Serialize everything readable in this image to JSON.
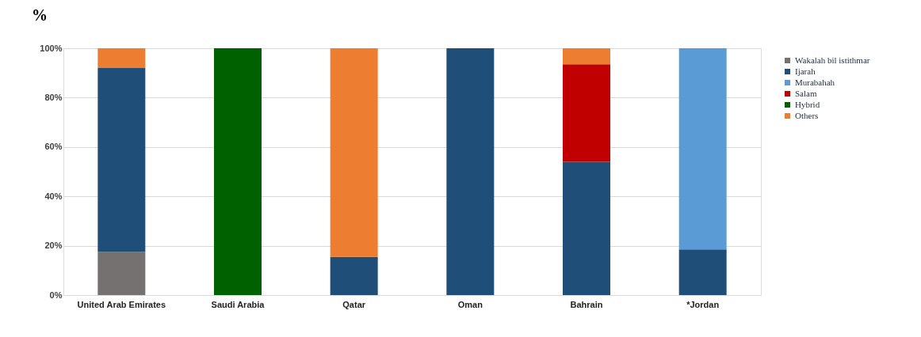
{
  "chart_data": {
    "type": "bar",
    "title": "%",
    "stacked": true,
    "categories": [
      "United Arab Emirates",
      "Saudi Arabia",
      "Qatar",
      "Oman",
      "Bahrain",
      "*Jordan"
    ],
    "series": [
      {
        "name": "Wakalah bil istithmar",
        "color": "#757171",
        "values": [
          17.5,
          null,
          null,
          null,
          null,
          null
        ]
      },
      {
        "name": "Ijarah",
        "color": "#1f4e79",
        "values": [
          74.5,
          null,
          15.5,
          100,
          54,
          18.5
        ]
      },
      {
        "name": "Murabahah",
        "color": "#5b9bd5",
        "values": [
          null,
          null,
          null,
          null,
          null,
          81.5
        ]
      },
      {
        "name": "Salam",
        "color": "#c00000",
        "values": [
          null,
          null,
          null,
          null,
          39.5,
          null
        ]
      },
      {
        "name": "Hybrid",
        "color": "#006100",
        "values": [
          null,
          100,
          null,
          null,
          null,
          null
        ]
      },
      {
        "name": "Others",
        "color": "#ed7d31",
        "values": [
          8,
          null,
          84.5,
          null,
          6.5,
          null
        ]
      }
    ],
    "ylim": [
      0,
      100
    ],
    "yticks": [
      {
        "value": 0,
        "label": "0%"
      },
      {
        "value": 20,
        "label": "20%"
      },
      {
        "value": 40,
        "label": "40%"
      },
      {
        "value": 60,
        "label": "60%"
      },
      {
        "value": 80,
        "label": "80%"
      },
      {
        "value": 100,
        "label": "100%"
      }
    ],
    "grid": "y",
    "legend": "right"
  }
}
